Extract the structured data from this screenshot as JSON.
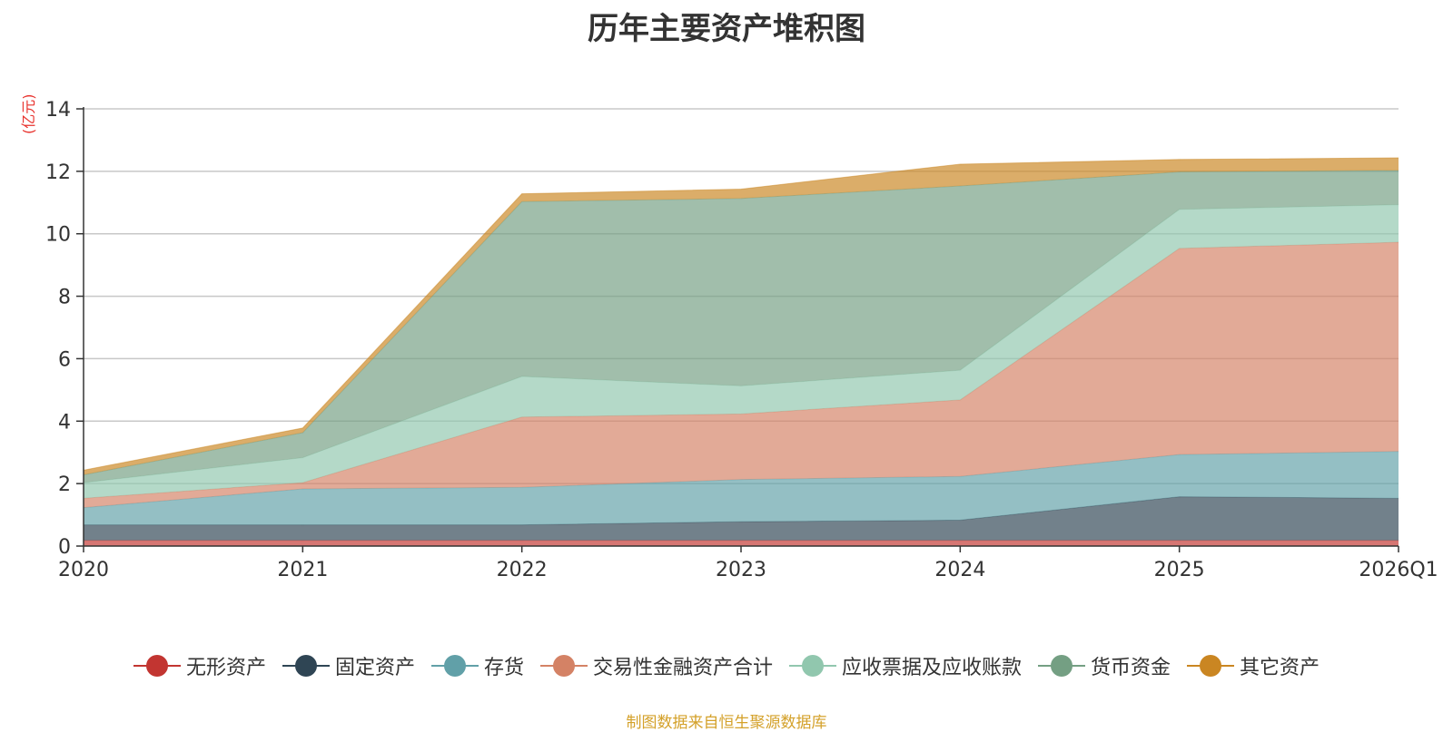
{
  "chart_data": {
    "type": "area",
    "stacked": true,
    "title": "历年主要资产堆积图",
    "ylabel": "(亿元)",
    "xlabel": "",
    "categories": [
      "2020",
      "2021",
      "2022",
      "2023",
      "2024",
      "2025",
      "2026Q1"
    ],
    "ylim": [
      0,
      14
    ],
    "yticks": [
      0,
      2,
      4,
      6,
      8,
      10,
      12,
      14
    ],
    "grid": true,
    "legend_position": "bottom",
    "series": [
      {
        "name": "无形资产",
        "color": "#c23531",
        "values": [
          0.18,
          0.18,
          0.18,
          0.18,
          0.18,
          0.18,
          0.18
        ]
      },
      {
        "name": "固定资产",
        "color": "#2f4554",
        "values": [
          0.5,
          0.5,
          0.5,
          0.6,
          0.65,
          1.4,
          1.35
        ]
      },
      {
        "name": "存货",
        "color": "#61a0a8",
        "values": [
          0.55,
          1.15,
          1.2,
          1.35,
          1.4,
          1.35,
          1.5
        ]
      },
      {
        "name": "交易性金融资产合计",
        "color": "#d48265",
        "values": [
          0.3,
          0.2,
          2.25,
          2.1,
          2.45,
          6.6,
          6.7
        ]
      },
      {
        "name": "应收票据及应收账款",
        "color": "#91c7ae",
        "values": [
          0.5,
          0.8,
          1.3,
          0.9,
          0.95,
          1.25,
          1.2
        ]
      },
      {
        "name": "货币资金",
        "color": "#749f83",
        "values": [
          0.25,
          0.8,
          5.6,
          6.0,
          5.9,
          1.2,
          1.1
        ]
      },
      {
        "name": "其它资产",
        "color": "#ca8622",
        "values": [
          0.15,
          0.15,
          0.25,
          0.3,
          0.7,
          0.4,
          0.4
        ]
      }
    ]
  },
  "source_note": "制图数据来自恒生聚源数据库"
}
